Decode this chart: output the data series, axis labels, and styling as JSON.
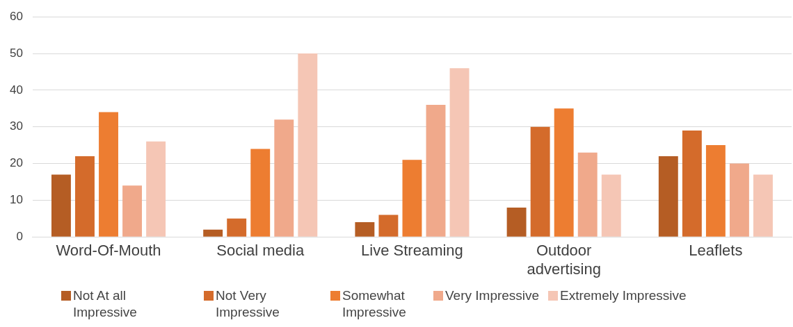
{
  "chart_data": {
    "type": "bar",
    "categories": [
      "Word-Of-Mouth",
      "Social media",
      "Live Streaming",
      "Outdoor advertising",
      "Leaflets"
    ],
    "series": [
      {
        "name": "Not At all Impressive",
        "color": "#b55d24",
        "values": [
          17,
          2,
          4,
          8,
          22
        ]
      },
      {
        "name": "Not Very Impressive",
        "color": "#d46b2b",
        "values": [
          22,
          5,
          6,
          30,
          29
        ]
      },
      {
        "name": "Somewhat Impressive",
        "color": "#ed7d31",
        "values": [
          34,
          24,
          21,
          35,
          25
        ]
      },
      {
        "name": "Very Impressive",
        "color": "#f0a98b",
        "values": [
          14,
          32,
          36,
          23,
          20
        ]
      },
      {
        "name": "Extremely Impressive",
        "color": "#f5c6b5",
        "values": [
          26,
          50,
          46,
          17,
          17
        ]
      }
    ],
    "ylim": [
      0,
      60
    ],
    "yticks": [
      0,
      10,
      20,
      30,
      40,
      50,
      60
    ],
    "grid": "y",
    "legend": "bottom"
  }
}
